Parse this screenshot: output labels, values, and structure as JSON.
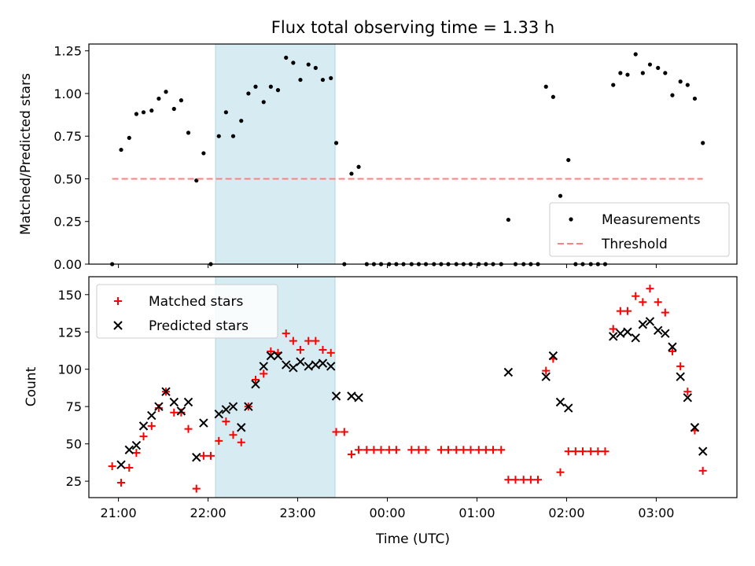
{
  "chart_data": [
    {
      "type": "scatter",
      "title": "Flux total observing time = 1.33 h",
      "ylabel": "Matched/Predicted stars",
      "ylim": [
        0,
        1.29
      ],
      "yticks": [
        0.0,
        0.25,
        0.5,
        0.75,
        1.0,
        1.25
      ],
      "ytick_labels": [
        "0.00",
        "0.25",
        "0.50",
        "0.75",
        "1.00",
        "1.25"
      ],
      "xlim_hours": [
        20.67,
        27.9
      ],
      "grid": false,
      "legend_position": "bottom-right",
      "highlight_span": {
        "start": "22:05",
        "end": "23:25",
        "color": "#add8e6"
      },
      "series": [
        {
          "name": "Measurements",
          "color": "#000000",
          "marker": "dot",
          "points": [
            [
              20.93,
              0.0
            ],
            [
              21.03,
              0.67
            ],
            [
              21.12,
              0.74
            ],
            [
              21.2,
              0.88
            ],
            [
              21.28,
              0.89
            ],
            [
              21.37,
              0.9
            ],
            [
              21.45,
              0.97
            ],
            [
              21.53,
              1.01
            ],
            [
              21.62,
              0.91
            ],
            [
              21.7,
              0.96
            ],
            [
              21.78,
              0.77
            ],
            [
              21.87,
              0.49
            ],
            [
              21.95,
              0.65
            ],
            [
              22.03,
              0.0
            ],
            [
              22.12,
              0.75
            ],
            [
              22.2,
              0.89
            ],
            [
              22.28,
              0.75
            ],
            [
              22.37,
              0.84
            ],
            [
              22.45,
              1.0
            ],
            [
              22.53,
              1.04
            ],
            [
              22.62,
              0.95
            ],
            [
              22.7,
              1.04
            ],
            [
              22.78,
              1.02
            ],
            [
              22.87,
              1.21
            ],
            [
              22.95,
              1.18
            ],
            [
              23.03,
              1.08
            ],
            [
              23.12,
              1.17
            ],
            [
              23.2,
              1.15
            ],
            [
              23.28,
              1.08
            ],
            [
              23.37,
              1.09
            ],
            [
              23.43,
              0.71
            ],
            [
              23.52,
              0.0
            ],
            [
              23.6,
              0.53
            ],
            [
              23.68,
              0.57
            ],
            [
              23.77,
              0.0
            ],
            [
              23.85,
              0.0
            ],
            [
              23.93,
              0.0
            ],
            [
              24.02,
              0.0
            ],
            [
              24.1,
              0.0
            ],
            [
              24.18,
              0.0
            ],
            [
              24.27,
              0.0
            ],
            [
              24.35,
              0.0
            ],
            [
              24.43,
              0.0
            ],
            [
              24.52,
              0.0
            ],
            [
              24.6,
              0.0
            ],
            [
              24.68,
              0.0
            ],
            [
              24.77,
              0.0
            ],
            [
              24.85,
              0.0
            ],
            [
              24.93,
              0.0
            ],
            [
              25.02,
              0.0
            ],
            [
              25.1,
              0.0
            ],
            [
              25.18,
              0.0
            ],
            [
              25.27,
              0.0
            ],
            [
              25.35,
              0.26
            ],
            [
              25.43,
              0.0
            ],
            [
              25.52,
              0.0
            ],
            [
              25.6,
              0.0
            ],
            [
              25.68,
              0.0
            ],
            [
              25.77,
              1.04
            ],
            [
              25.85,
              0.98
            ],
            [
              25.93,
              0.4
            ],
            [
              26.02,
              0.61
            ],
            [
              26.1,
              0.0
            ],
            [
              26.18,
              0.0
            ],
            [
              26.27,
              0.0
            ],
            [
              26.35,
              0.0
            ],
            [
              26.43,
              0.0
            ],
            [
              26.52,
              1.05
            ],
            [
              26.6,
              1.12
            ],
            [
              26.68,
              1.11
            ],
            [
              26.77,
              1.23
            ],
            [
              26.85,
              1.12
            ],
            [
              26.93,
              1.17
            ],
            [
              27.02,
              1.15
            ],
            [
              27.1,
              1.12
            ],
            [
              27.18,
              0.99
            ],
            [
              27.27,
              1.07
            ],
            [
              27.35,
              1.05
            ],
            [
              27.43,
              0.97
            ],
            [
              27.52,
              0.71
            ]
          ]
        },
        {
          "name": "Threshold",
          "color": "#ff8080",
          "style": "dashed",
          "x": [
            20.93,
            27.52
          ],
          "y": [
            0.5,
            0.5
          ]
        }
      ]
    },
    {
      "type": "scatter",
      "xlabel": "Time (UTC)",
      "ylabel": "Count",
      "ylim": [
        14,
        162
      ],
      "yticks": [
        25,
        50,
        75,
        100,
        125,
        150
      ],
      "ytick_labels": [
        "25",
        "50",
        "75",
        "100",
        "125",
        "150"
      ],
      "xticks_hours": [
        21,
        22,
        23,
        24,
        25,
        26,
        27
      ],
      "xtick_labels": [
        "21:00",
        "22:00",
        "23:00",
        "00:00",
        "01:00",
        "02:00",
        "03:00"
      ],
      "xlim_hours": [
        20.67,
        27.9
      ],
      "grid": false,
      "legend_position": "top-left",
      "highlight_span": {
        "start": "22:05",
        "end": "23:25",
        "color": "#add8e6"
      },
      "series": [
        {
          "name": "Matched stars",
          "color": "#ff0000",
          "marker": "plus",
          "points": [
            [
              20.93,
              35
            ],
            [
              21.03,
              24
            ],
            [
              21.12,
              34
            ],
            [
              21.2,
              44
            ],
            [
              21.28,
              55
            ],
            [
              21.37,
              62
            ],
            [
              21.45,
              74
            ],
            [
              21.53,
              85
            ],
            [
              21.62,
              71
            ],
            [
              21.7,
              71
            ],
            [
              21.78,
              60
            ],
            [
              21.87,
              20
            ],
            [
              21.95,
              42
            ],
            [
              22.03,
              42
            ],
            [
              22.12,
              52
            ],
            [
              22.2,
              65
            ],
            [
              22.28,
              56
            ],
            [
              22.37,
              51
            ],
            [
              22.45,
              75
            ],
            [
              22.53,
              93
            ],
            [
              22.62,
              97
            ],
            [
              22.7,
              112
            ],
            [
              22.78,
              111
            ],
            [
              22.87,
              124
            ],
            [
              22.95,
              119
            ],
            [
              23.03,
              113
            ],
            [
              23.12,
              119
            ],
            [
              23.2,
              119
            ],
            [
              23.28,
              113
            ],
            [
              23.37,
              111
            ],
            [
              23.43,
              58
            ],
            [
              23.52,
              58
            ],
            [
              23.6,
              43
            ],
            [
              23.68,
              46
            ],
            [
              23.77,
              46
            ],
            [
              23.85,
              46
            ],
            [
              23.93,
              46
            ],
            [
              24.02,
              46
            ],
            [
              24.1,
              46
            ],
            [
              24.27,
              46
            ],
            [
              24.35,
              46
            ],
            [
              24.43,
              46
            ],
            [
              24.6,
              46
            ],
            [
              24.68,
              46
            ],
            [
              24.77,
              46
            ],
            [
              24.85,
              46
            ],
            [
              24.93,
              46
            ],
            [
              25.02,
              46
            ],
            [
              25.1,
              46
            ],
            [
              25.18,
              46
            ],
            [
              25.27,
              46
            ],
            [
              25.35,
              26
            ],
            [
              25.43,
              26
            ],
            [
              25.52,
              26
            ],
            [
              25.6,
              26
            ],
            [
              25.68,
              26
            ],
            [
              25.77,
              99
            ],
            [
              25.85,
              107
            ],
            [
              25.93,
              31
            ],
            [
              26.02,
              45
            ],
            [
              26.1,
              45
            ],
            [
              26.18,
              45
            ],
            [
              26.27,
              45
            ],
            [
              26.35,
              45
            ],
            [
              26.43,
              45
            ],
            [
              26.52,
              127
            ],
            [
              26.6,
              139
            ],
            [
              26.68,
              139
            ],
            [
              26.77,
              149
            ],
            [
              26.85,
              145
            ],
            [
              26.93,
              154
            ],
            [
              27.02,
              145
            ],
            [
              27.1,
              138
            ],
            [
              27.18,
              112
            ],
            [
              27.27,
              102
            ],
            [
              27.35,
              85
            ],
            [
              27.43,
              59
            ],
            [
              27.52,
              32
            ]
          ]
        },
        {
          "name": "Predicted stars",
          "color": "#000000",
          "marker": "x",
          "points": [
            [
              21.03,
              36
            ],
            [
              21.12,
              46
            ],
            [
              21.2,
              49
            ],
            [
              21.28,
              62
            ],
            [
              21.37,
              69
            ],
            [
              21.45,
              75
            ],
            [
              21.53,
              85
            ],
            [
              21.62,
              78
            ],
            [
              21.7,
              72
            ],
            [
              21.78,
              78
            ],
            [
              21.87,
              41
            ],
            [
              21.95,
              64
            ],
            [
              22.12,
              70
            ],
            [
              22.2,
              73
            ],
            [
              22.28,
              75
            ],
            [
              22.37,
              61
            ],
            [
              22.45,
              75
            ],
            [
              22.53,
              90
            ],
            [
              22.62,
              102
            ],
            [
              22.7,
              109
            ],
            [
              22.78,
              109
            ],
            [
              22.87,
              103
            ],
            [
              22.95,
              101
            ],
            [
              23.03,
              105
            ],
            [
              23.12,
              102
            ],
            [
              23.2,
              103
            ],
            [
              23.28,
              104
            ],
            [
              23.37,
              102
            ],
            [
              23.43,
              82
            ],
            [
              23.6,
              82
            ],
            [
              23.68,
              81
            ],
            [
              25.35,
              98
            ],
            [
              25.77,
              95
            ],
            [
              25.85,
              109
            ],
            [
              25.93,
              78
            ],
            [
              26.02,
              74
            ],
            [
              26.52,
              122
            ],
            [
              26.6,
              124
            ],
            [
              26.68,
              125
            ],
            [
              26.77,
              121
            ],
            [
              26.85,
              130
            ],
            [
              26.93,
              132
            ],
            [
              27.02,
              126
            ],
            [
              27.1,
              124
            ],
            [
              27.18,
              115
            ],
            [
              27.27,
              95
            ],
            [
              27.35,
              81
            ],
            [
              27.43,
              61
            ],
            [
              27.52,
              45
            ]
          ]
        }
      ]
    }
  ]
}
